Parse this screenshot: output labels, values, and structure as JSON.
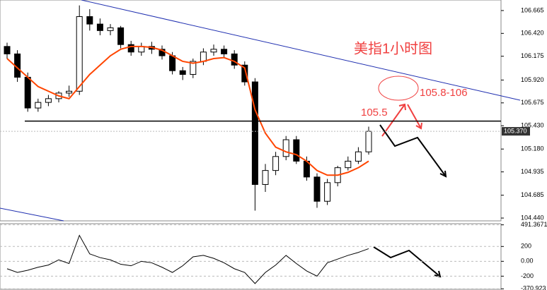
{
  "chart_data": [
    {
      "type": "candlestick",
      "title": "美指1小时图",
      "open": [
        106.28,
        106.2,
        105.95,
        105.62,
        105.68,
        105.72,
        105.78,
        105.8,
        106.6,
        106.52,
        106.45,
        106.48,
        106.3,
        106.22,
        106.28,
        106.25,
        106.18,
        106.02,
        105.98,
        106.12,
        106.22,
        106.25,
        106.2,
        106.08,
        105.9,
        104.8,
        104.95,
        105.1,
        105.28,
        105.05,
        104.88,
        104.62,
        104.82,
        104.98,
        105.05,
        105.15
      ],
      "high": [
        106.32,
        106.24,
        106.0,
        105.72,
        105.76,
        105.8,
        105.86,
        106.72,
        106.68,
        106.58,
        106.52,
        106.5,
        106.34,
        106.32,
        106.33,
        106.29,
        106.22,
        106.06,
        106.15,
        106.26,
        106.3,
        106.29,
        106.24,
        106.12,
        105.94,
        105.02,
        105.15,
        105.32,
        105.32,
        105.1,
        104.92,
        104.86,
        105.0,
        105.1,
        105.2,
        105.42
      ],
      "low": [
        106.15,
        105.9,
        105.58,
        105.58,
        105.64,
        105.68,
        105.74,
        105.76,
        106.45,
        106.4,
        106.4,
        106.26,
        106.18,
        106.18,
        106.2,
        106.14,
        105.98,
        105.92,
        105.94,
        106.08,
        106.18,
        106.16,
        106.04,
        105.86,
        104.52,
        104.72,
        104.9,
        105.06,
        105.02,
        104.84,
        104.55,
        104.58,
        104.78,
        104.95,
        105.02,
        105.12
      ],
      "close": [
        106.2,
        105.95,
        105.62,
        105.68,
        105.72,
        105.78,
        105.8,
        106.6,
        106.52,
        106.45,
        106.48,
        106.3,
        106.22,
        106.28,
        106.25,
        106.18,
        106.02,
        105.98,
        106.12,
        106.22,
        106.25,
        106.2,
        106.08,
        105.9,
        104.8,
        104.95,
        105.1,
        105.28,
        105.05,
        104.88,
        104.62,
        104.82,
        104.98,
        105.05,
        105.15,
        105.37
      ],
      "series": [
        {
          "color": "#ff4500",
          "values": [
            106.15,
            106.05,
            105.95,
            105.85,
            105.8,
            105.75,
            105.72,
            105.85,
            105.98,
            106.08,
            106.18,
            106.25,
            106.28,
            106.28,
            106.27,
            106.24,
            106.18,
            106.12,
            106.1,
            106.12,
            106.15,
            106.16,
            106.12,
            106.05,
            105.6,
            105.35,
            105.2,
            105.15,
            105.12,
            105.05,
            104.95,
            104.9,
            104.9,
            104.93,
            104.98,
            105.05
          ]
        }
      ],
      "ylim": [
        104.41,
        106.778
      ],
      "yticks": [
        106.665,
        {
          "value": 106.42,
          "label": "106.420"
        },
        106.175,
        {
          "value": 105.92,
          "label": "105.920"
        },
        105.675,
        {
          "value": 105.43,
          "label": "105.430"
        },
        {
          "value": 105.18,
          "label": "105.180"
        },
        104.935,
        104.685,
        {
          "value": 104.44,
          "label": "104.440"
        }
      ],
      "current_price": {
        "value": 105.37,
        "label": "105.370"
      },
      "support_line": 105.48,
      "annotations": [
        "105.5",
        "105.8-106"
      ]
    },
    {
      "type": "line",
      "color": "#000000",
      "values": [
        -100,
        -150,
        -120,
        -80,
        -50,
        20,
        -30,
        350,
        100,
        50,
        20,
        -40,
        -60,
        0,
        -20,
        -80,
        -150,
        -60,
        60,
        80,
        40,
        -20,
        -100,
        -150,
        -300,
        -150,
        -50,
        80,
        -30,
        -130,
        -200,
        -20,
        30,
        80,
        120,
        170
      ],
      "ylim": [
        -377,
        507
      ],
      "yticks": [
        491.3671,
        200,
        {
          "value": 0,
          "label": "0.00"
        },
        -200,
        -370.923
      ]
    }
  ]
}
